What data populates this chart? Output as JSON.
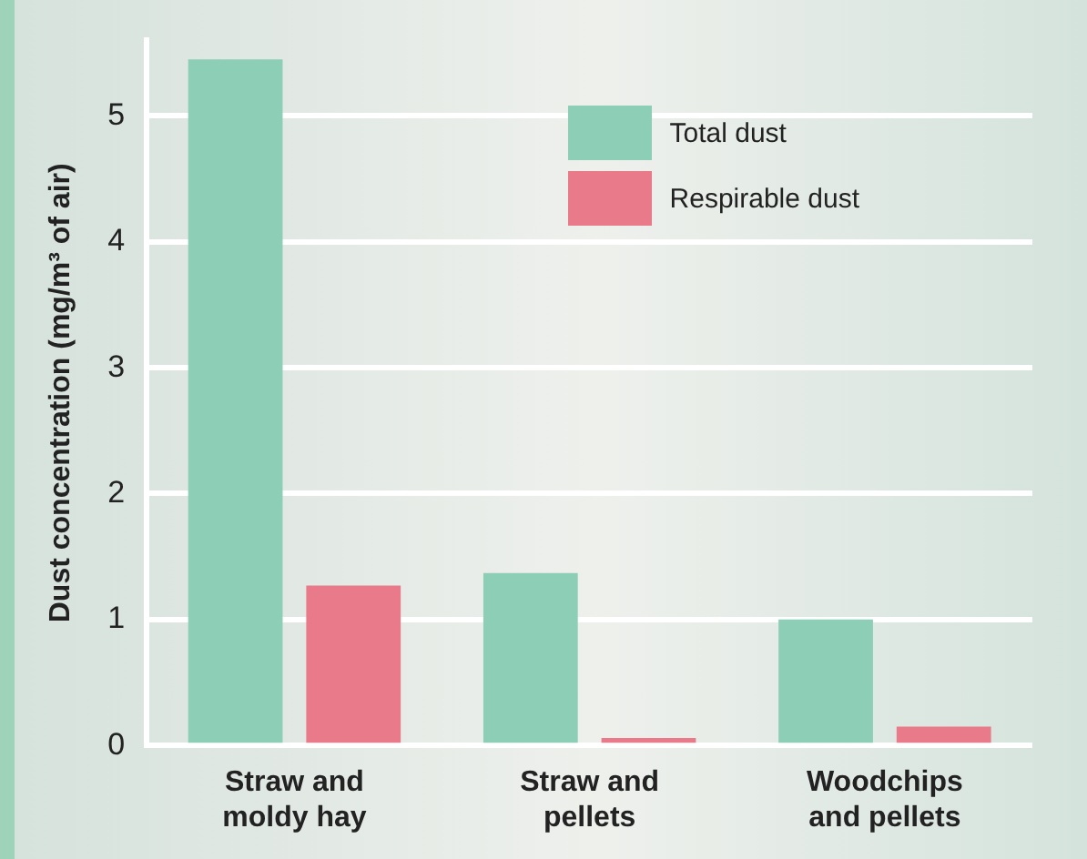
{
  "chart_data": {
    "type": "bar",
    "ylabel": "Dust concentration (mg/m³ of air)",
    "categories": [
      "Straw and\nmoldy hay",
      "Straw and\npellets",
      "Woodchips\nand pellets"
    ],
    "series": [
      {
        "name": "Total dust",
        "color": "#8ccfb6",
        "values": [
          5.45,
          1.37,
          1.0
        ]
      },
      {
        "name": "Respirable dust",
        "color": "#e87a8a",
        "values": [
          1.27,
          0.06,
          0.15
        ]
      }
    ],
    "ylim": [
      0,
      5.6
    ],
    "yticks": [
      0,
      1,
      2,
      3,
      4,
      5
    ],
    "grid": "y",
    "legend": "top right"
  }
}
